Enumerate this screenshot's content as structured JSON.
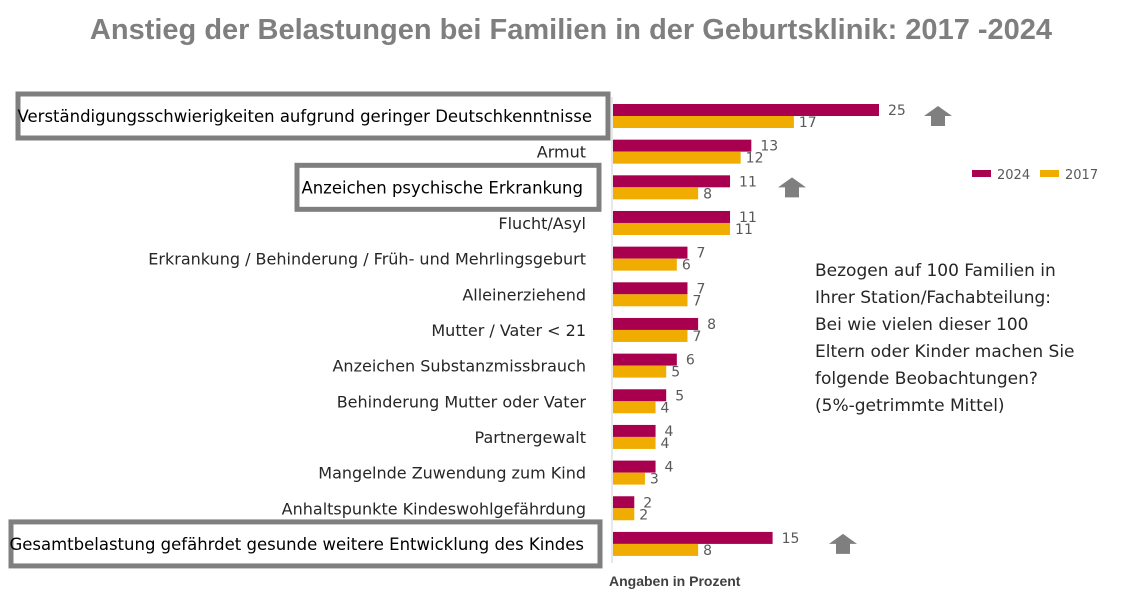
{
  "chart_data": {
    "type": "bar",
    "orientation": "horizontal",
    "title": "Anstieg der Belastungen bei Familien in der Geburtsklinik: 2017 -2024",
    "xlabel": "Angaben in Prozent",
    "categories": [
      "Verständigungsschwierigkeiten aufgrund geringer Deutschkenntnisse",
      "Armut",
      "Anzeichen psychische Erkrankung",
      "Flucht/Asyl",
      "Erkrankung / Behinderung / Früh- und Mehrlingsgeburt",
      "Alleinerziehend",
      "Mutter / Vater < 21",
      "Anzeichen Substanzmissbrauch",
      "Behinderung Mutter oder Vater",
      "Partnergewalt",
      "Mangelnde Zuwendung zum Kind",
      "Anhaltspunkte Kindeswohlgefährdung",
      "Gesamtbelastung gefährdet gesunde weitere Entwicklung des Kindes"
    ],
    "series": [
      {
        "name": "2024",
        "color": "#a8004f",
        "values": [
          25,
          13,
          11,
          11,
          7,
          7,
          8,
          6,
          5,
          4,
          4,
          2,
          15
        ]
      },
      {
        "name": "2017",
        "color": "#f0ac00",
        "values": [
          17,
          12,
          8,
          11,
          6,
          7,
          7,
          5,
          4,
          4,
          3,
          2,
          8
        ]
      }
    ],
    "highlighted_categories": [
      0,
      2,
      12
    ],
    "increase_arrows": [
      0,
      2,
      12
    ],
    "legend_position": "right",
    "grid": false,
    "xlim": [
      0,
      25
    ],
    "annotation": [
      "Bezogen auf 100 Familien in",
      "Ihrer Station/Fachabteilung:",
      "Bei wie vielen dieser 100",
      "Eltern oder Kinder machen Sie",
      "folgende Beobachtungen?",
      "(5%-getrimmte Mittel)"
    ]
  }
}
